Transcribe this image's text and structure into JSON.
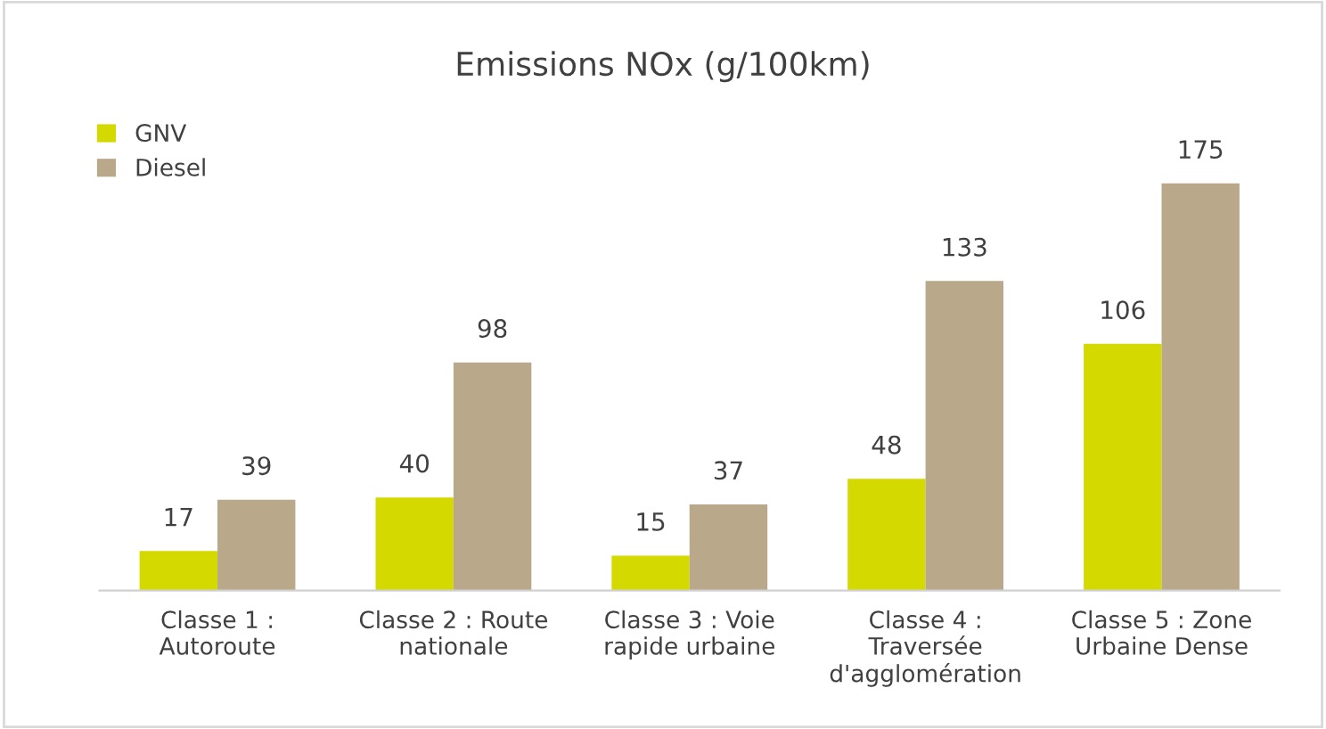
{
  "chart_data": {
    "type": "bar",
    "title": "Emissions NOx (g/100km)",
    "categories": [
      "Classe 1 :\nAutoroute",
      "Classe 2 : Route\nnationale",
      "Classe 3 : Voie\nrapide urbaine",
      "Classe 4 :\nTraversée\nd'agglomération",
      "Classe 5 : Zone\nUrbaine Dense"
    ],
    "series": [
      {
        "name": "GNV",
        "color": "#d4da00",
        "values": [
          17,
          40,
          15,
          48,
          106
        ]
      },
      {
        "name": "Diesel",
        "color": "#b9a98a",
        "values": [
          39,
          98,
          37,
          133,
          175
        ]
      }
    ],
    "data_labels": true,
    "grid": false,
    "legend": "top left"
  }
}
